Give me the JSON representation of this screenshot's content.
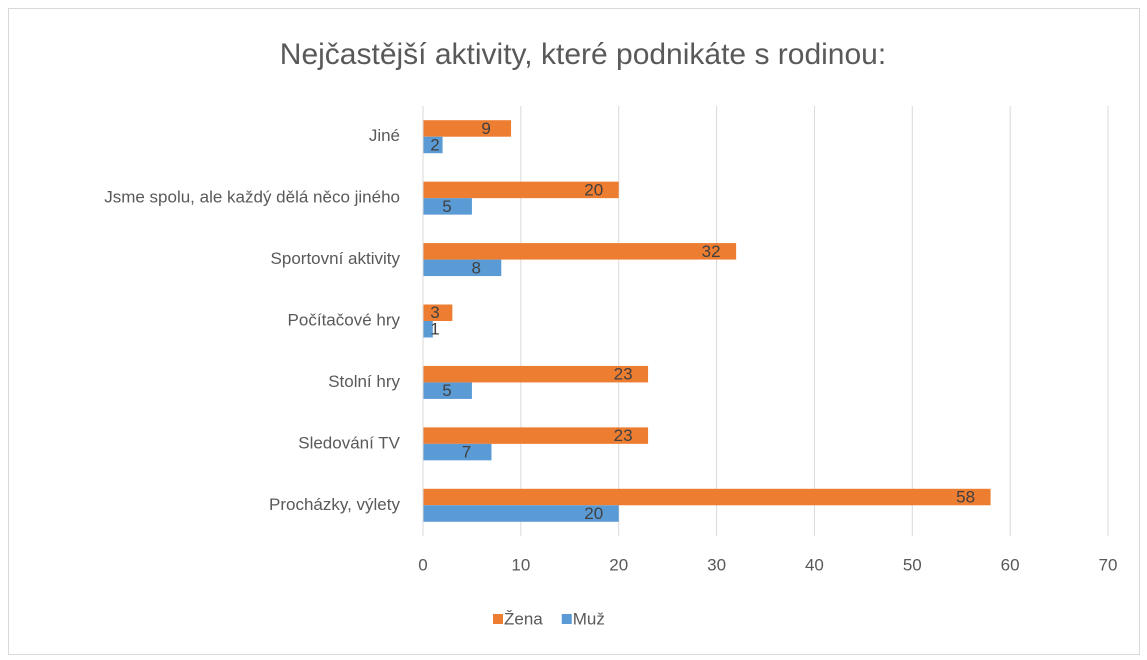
{
  "chart_data": {
    "type": "hbar",
    "title": "Nejčastější aktivity, které podnikáte s rodinou:",
    "categories": [
      "Jiné",
      "Jsme spolu, ale každý dělá něco jiného",
      "Sportovní aktivity",
      "Počítačové hry",
      "Stolní hry",
      "Sledování TV",
      "Procházky, výlety"
    ],
    "series": [
      {
        "name": "Žena",
        "color": "#ed7d31",
        "values": [
          9,
          20,
          32,
          3,
          23,
          23,
          58
        ]
      },
      {
        "name": "Muž",
        "color": "#5b9bd5",
        "values": [
          2,
          5,
          8,
          1,
          5,
          7,
          20
        ]
      }
    ],
    "xlim": [
      0,
      70
    ],
    "xticks": [
      0,
      10,
      20,
      30,
      40,
      50,
      60,
      70
    ],
    "grid": true,
    "legend": "bottom"
  }
}
